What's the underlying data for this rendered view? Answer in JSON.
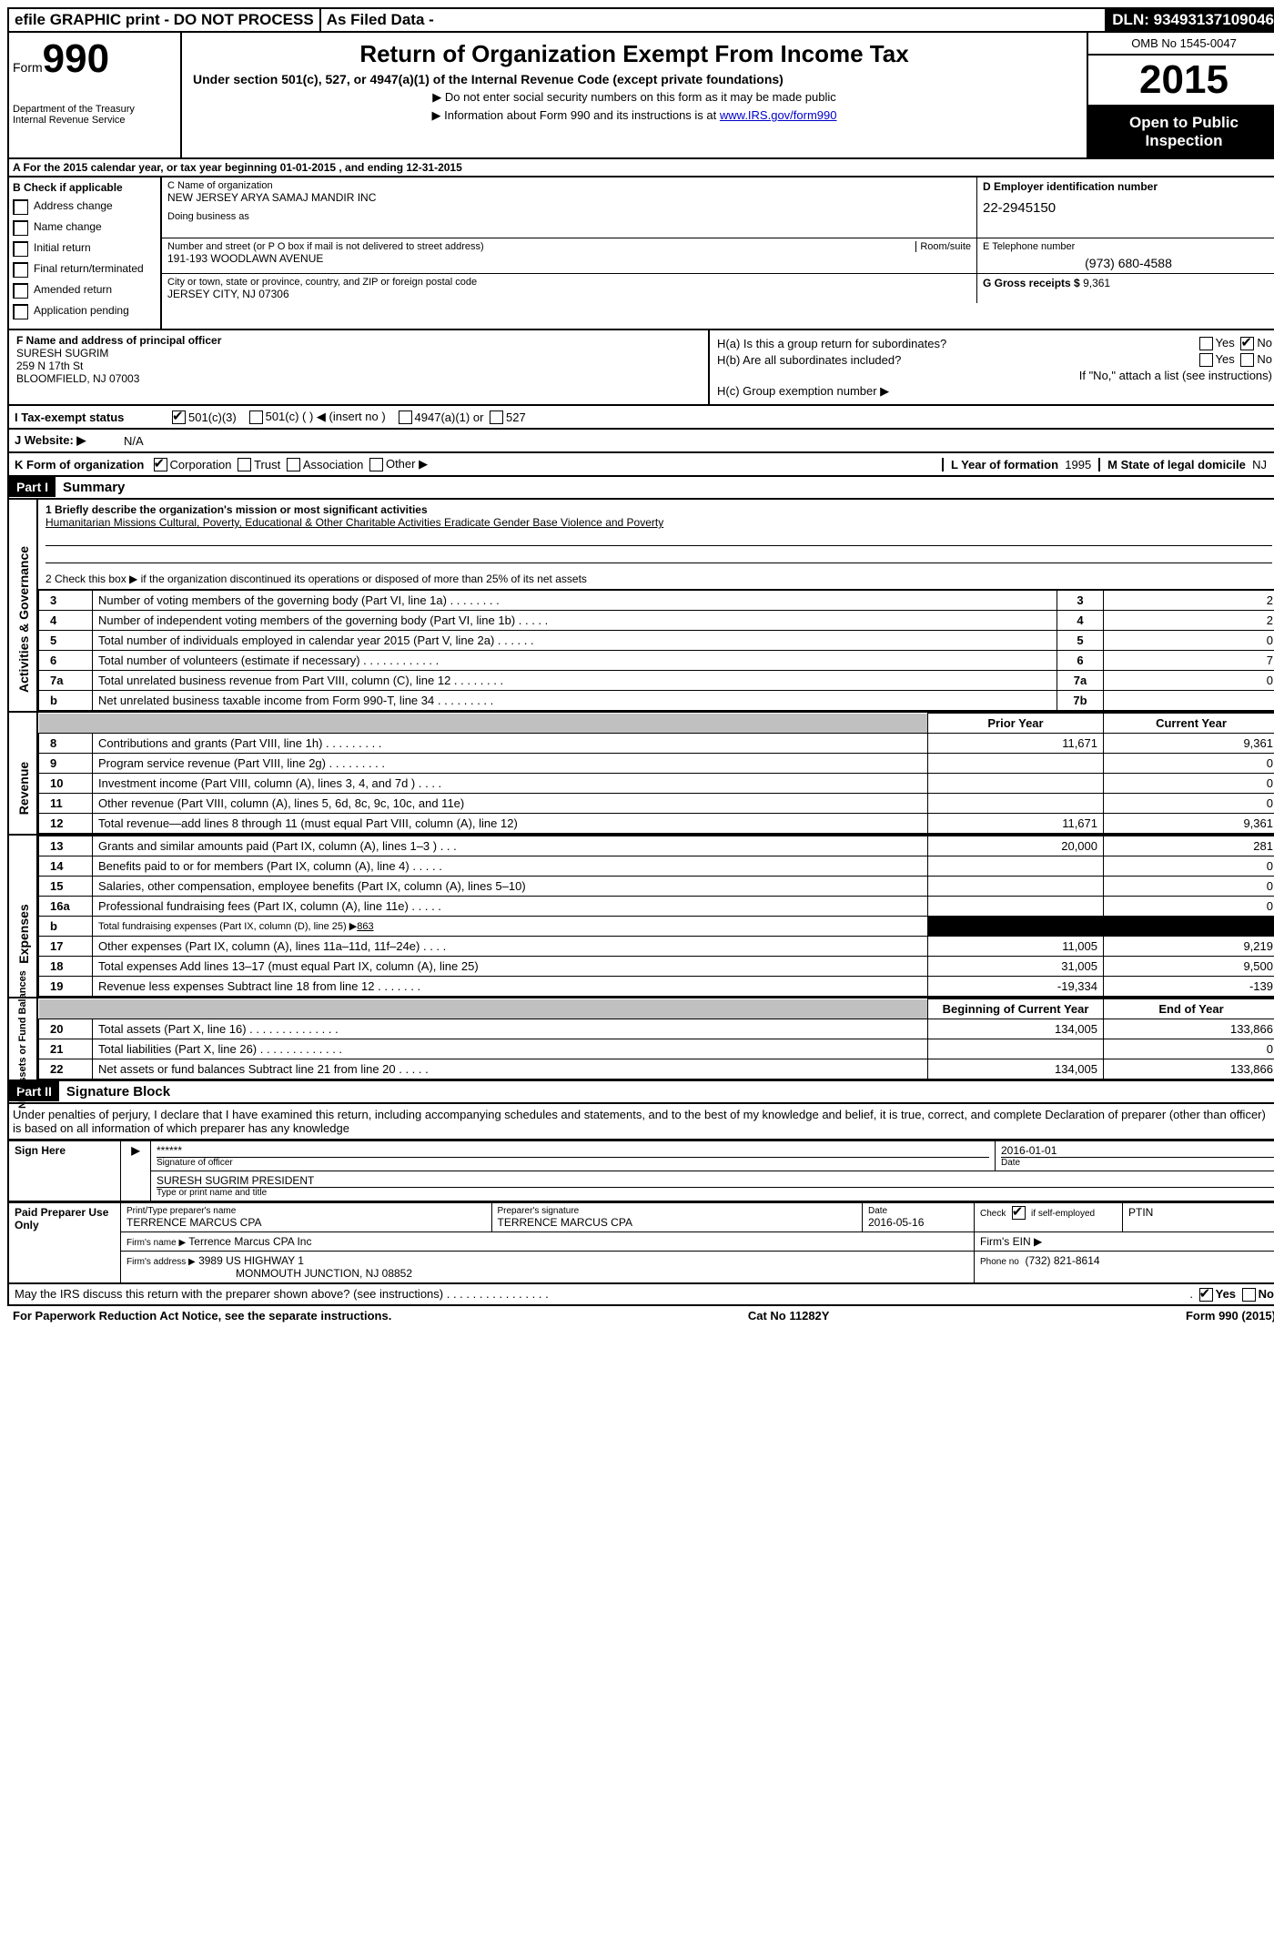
{
  "top": {
    "efile": "efile GRAPHIC print - DO NOT PROCESS",
    "asfiled": "As Filed Data -",
    "dln_label": "DLN:",
    "dln": "93493137109046"
  },
  "header": {
    "form_word": "Form",
    "form_num": "990",
    "dept1": "Department of the Treasury",
    "dept2": "Internal Revenue Service",
    "title": "Return of Organization Exempt From Income Tax",
    "sub": "Under section 501(c), 527, or 4947(a)(1) of the Internal Revenue Code (except private foundations)",
    "note1": "▶ Do not enter social security numbers on this form as it may be made public",
    "note2_pre": "▶ Information about Form 990 and its instructions is at ",
    "note2_link": "www.IRS.gov/form990",
    "omb": "OMB No 1545-0047",
    "year": "2015",
    "open1": "Open to Public",
    "open2": "Inspection"
  },
  "section_a": "A   For the 2015 calendar year, or tax year beginning 01-01-2015     , and ending 12-31-2015",
  "col_b": {
    "hdr": "B  Check if applicable",
    "items": [
      "Address change",
      "Name change",
      "Initial return",
      "Final return/terminated",
      "Amended return",
      "Application pending"
    ]
  },
  "c": {
    "label": "C Name of organization",
    "name": "NEW JERSEY ARYA SAMAJ MANDIR INC",
    "dba_label": "Doing business as",
    "street_label": "Number and street (or P O  box if mail is not delivered to street address)",
    "room_label": "Room/suite",
    "street": "191-193 WOODLAWN AVENUE",
    "city_label": "City or town, state or province, country, and ZIP or foreign postal code",
    "city": "JERSEY CITY, NJ  07306"
  },
  "d": {
    "label": "D Employer identification number",
    "val": "22-2945150"
  },
  "e": {
    "label": "E Telephone number",
    "val": "(973) 680-4588"
  },
  "g": {
    "label": "G Gross receipts $",
    "val": "9,361"
  },
  "f": {
    "label": "F   Name and address of principal officer",
    "name": "SURESH SUGRIM",
    "street": "259 N 17th St",
    "city": "BLOOMFIELD, NJ 07003"
  },
  "h": {
    "a": "H(a)  Is this a group return for subordinates?",
    "b": "H(b)  Are all subordinates included?",
    "ifno": "If \"No,\" attach a list  (see instructions)",
    "c": "H(c)   Group exemption number ▶",
    "yes": "Yes",
    "no": "No"
  },
  "i": {
    "label": "I   Tax-exempt status",
    "o1": "501(c)(3)",
    "o2": "501(c) (  ) ◀ (insert no )",
    "o3": "4947(a)(1) or",
    "o4": "527"
  },
  "j": {
    "label": "J   Website: ▶",
    "val": "N/A"
  },
  "k": {
    "label": "K Form of organization",
    "o1": "Corporation",
    "o2": "Trust",
    "o3": "Association",
    "o4": "Other ▶",
    "l_label": "L Year of formation",
    "l_val": "1995",
    "m_label": "M State of legal domicile",
    "m_val": "NJ"
  },
  "part1": {
    "num": "Part I",
    "title": "Summary"
  },
  "part2": {
    "num": "Part II",
    "title": "Signature Block"
  },
  "sum": {
    "q1": "1 Briefly describe the organization's mission or most significant activities",
    "q1_ans": "Humanitarian Missions  Cultural, Poverty, Educational & Other Charitable Activities Eradicate Gender Base Violence and Poverty",
    "q2": "2  Check this box ▶      if the organization discontinued its operations or disposed of more than 25% of its net assets",
    "rows_top": [
      {
        "n": "3",
        "t": "Number of voting members of the governing body (Part VI, line 1a)  .   .   .   .   .   .   .   .",
        "num": "3",
        "v": "2"
      },
      {
        "n": "4",
        "t": "Number of independent voting members of the governing body (Part VI, line 1b)  .   .   .   .   .",
        "num": "4",
        "v": "2"
      },
      {
        "n": "5",
        "t": "Total number of individuals employed in calendar year 2015 (Part V, line 2a)  .   .   .   .   .   .",
        "num": "5",
        "v": "0"
      },
      {
        "n": "6",
        "t": "Total number of volunteers (estimate if necessary)  .   .   .   .   .   .   .   .   .   .   .   .",
        "num": "6",
        "v": "7"
      },
      {
        "n": "7a",
        "t": "Total unrelated business revenue from Part VIII, column (C), line 12  .   .   .   .   .   .   .   .",
        "num": "7a",
        "v": "0"
      },
      {
        "n": "b",
        "t": "Net unrelated business taxable income from Form 990-T, line 34  .   .   .   .   .   .   .   .   .",
        "num": "7b",
        "v": ""
      }
    ],
    "col_prior": "Prior Year",
    "col_curr": "Current Year",
    "rev": [
      {
        "n": "8",
        "t": "Contributions and grants (Part VIII, line 1h)  .   .   .   .   .   .   .   .   .",
        "p": "11,671",
        "c": "9,361"
      },
      {
        "n": "9",
        "t": "Program service revenue (Part VIII, line 2g)  .   .   .   .   .   .   .   .   .",
        "p": "",
        "c": "0"
      },
      {
        "n": "10",
        "t": "Investment income (Part VIII, column (A), lines 3, 4, and 7d )  .   .   .   .",
        "p": "",
        "c": "0"
      },
      {
        "n": "11",
        "t": "Other revenue (Part VIII, column (A), lines 5, 6d, 8c, 9c, 10c, and 11e)",
        "p": "",
        "c": "0"
      },
      {
        "n": "12",
        "t": "Total revenue—add lines 8 through 11 (must equal Part VIII, column (A), line 12)",
        "p": "11,671",
        "c": "9,361"
      }
    ],
    "exp": [
      {
        "n": "13",
        "t": "Grants and similar amounts paid (Part IX, column (A), lines 1–3 )  .   .   .",
        "p": "20,000",
        "c": "281"
      },
      {
        "n": "14",
        "t": "Benefits paid to or for members (Part IX, column (A), line 4)  .   .   .   .   .",
        "p": "",
        "c": "0"
      },
      {
        "n": "15",
        "t": "Salaries, other compensation, employee benefits (Part IX, column (A), lines 5–10)",
        "p": "",
        "c": "0"
      },
      {
        "n": "16a",
        "t": "Professional fundraising fees (Part IX, column (A), line 11e)  .   .   .   .   .",
        "p": "",
        "c": "0"
      },
      {
        "n": "b",
        "t": "Total fundraising expenses (Part IX, column (D), line 25) ▶",
        "fund": "863",
        "black": true
      },
      {
        "n": "17",
        "t": "Other expenses (Part IX, column (A), lines 11a–11d, 11f–24e)  .   .   .   .",
        "p": "11,005",
        "c": "9,219"
      },
      {
        "n": "18",
        "t": "Total expenses  Add lines 13–17 (must equal Part IX, column (A), line 25)",
        "p": "31,005",
        "c": "9,500"
      },
      {
        "n": "19",
        "t": "Revenue less expenses  Subtract line 18 from line 12  .   .   .   .   .   .   .",
        "p": "-19,334",
        "c": "-139"
      }
    ],
    "col_beg": "Beginning of Current Year",
    "col_end": "End of Year",
    "net": [
      {
        "n": "20",
        "t": "Total assets (Part X, line 16)  .   .   .   .   .   .   .   .   .   .   .   .   .   .",
        "p": "134,005",
        "c": "133,866"
      },
      {
        "n": "21",
        "t": "Total liabilities (Part X, line 26)  .   .   .   .   .   .   .   .   .   .   .   .   .",
        "p": "",
        "c": "0"
      },
      {
        "n": "22",
        "t": "Net assets or fund balances  Subtract line 21 from line 20  .   .   .   .   .",
        "p": "134,005",
        "c": "133,866"
      }
    ]
  },
  "side_labels": {
    "ag": "Activities & Governance",
    "rev": "Revenue",
    "exp": "Expenses",
    "net": "Net Assets or Fund Balances"
  },
  "sig_text": "Under penalties of perjury, I declare that I have examined this return, including accompanying schedules and statements, and to the best of my knowledge and belief, it is true, correct, and complete  Declaration of preparer (other than officer) is based on all information of which preparer has any knowledge",
  "sign": {
    "here": "Sign Here",
    "stars": "******",
    "sig_of": "Signature of officer",
    "date": "2016-01-01",
    "date_lbl": "Date",
    "name": "SURESH SUGRIM PRESIDENT",
    "name_lbl": "Type or print name and title"
  },
  "paid": {
    "label": "Paid Preparer Use Only",
    "h1": "Print/Type preparer's name",
    "v1": "TERRENCE MARCUS CPA",
    "h2": "Preparer's signature",
    "v2": "TERRENCE MARCUS CPA",
    "h3": "Date",
    "v3": "2016-05-16",
    "h4_pre": "Check",
    "h4_chk": "if self-employed",
    "h5": "PTIN",
    "firm_name_lbl": "Firm's name      ▶",
    "firm_name": "Terrence Marcus CPA Inc",
    "firm_ein_lbl": "Firm's EIN ▶",
    "firm_addr_lbl": "Firm's address ▶",
    "firm_addr1": "3989 US HIGHWAY 1",
    "firm_addr2": "MONMOUTH JUNCTION, NJ  08852",
    "phone_lbl": "Phone no",
    "phone": "(732) 821-8614"
  },
  "footer": {
    "discuss": "May the IRS discuss this return with the preparer shown above? (see instructions)  .   .   .   .   .   .   .   .   .   .   .   .   .   .   .   .",
    "yes": "Yes",
    "no": "No",
    "paperwork": "For Paperwork Reduction Act Notice, see the separate instructions.",
    "cat": "Cat No 11282Y",
    "form": "Form",
    "formnum": "990",
    "formyr": "(2015)"
  }
}
